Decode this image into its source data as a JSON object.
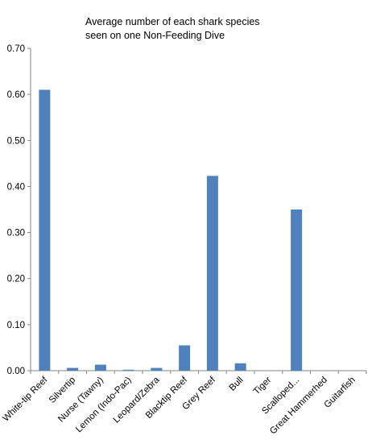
{
  "chart_data": {
    "type": "bar",
    "title_lines": [
      "Average number of  each shark species",
      "seen on one Non-Feeding Dive"
    ],
    "categories": [
      "White-tip Reef",
      "Silvertip",
      "Nurse (Tawny)",
      "Lemon (Indo-Pac)",
      "Leopard/Zebra",
      "Blacktip Reef",
      "Grey Reef",
      "Bull",
      "Tiger",
      "Scalloped...",
      "Great Hammerhed",
      "Guitarfish"
    ],
    "values": [
      0.61,
      0.006,
      0.013,
      0.002,
      0.006,
      0.055,
      0.423,
      0.016,
      0,
      0.35,
      0,
      0
    ],
    "ylim": [
      0,
      0.7
    ],
    "yticks": [
      "0.00",
      "0.10",
      "0.20",
      "0.30",
      "0.40",
      "0.50",
      "0.60",
      "0.70"
    ],
    "grid": false,
    "legend": "none",
    "bar_color": "#4f81bd"
  }
}
